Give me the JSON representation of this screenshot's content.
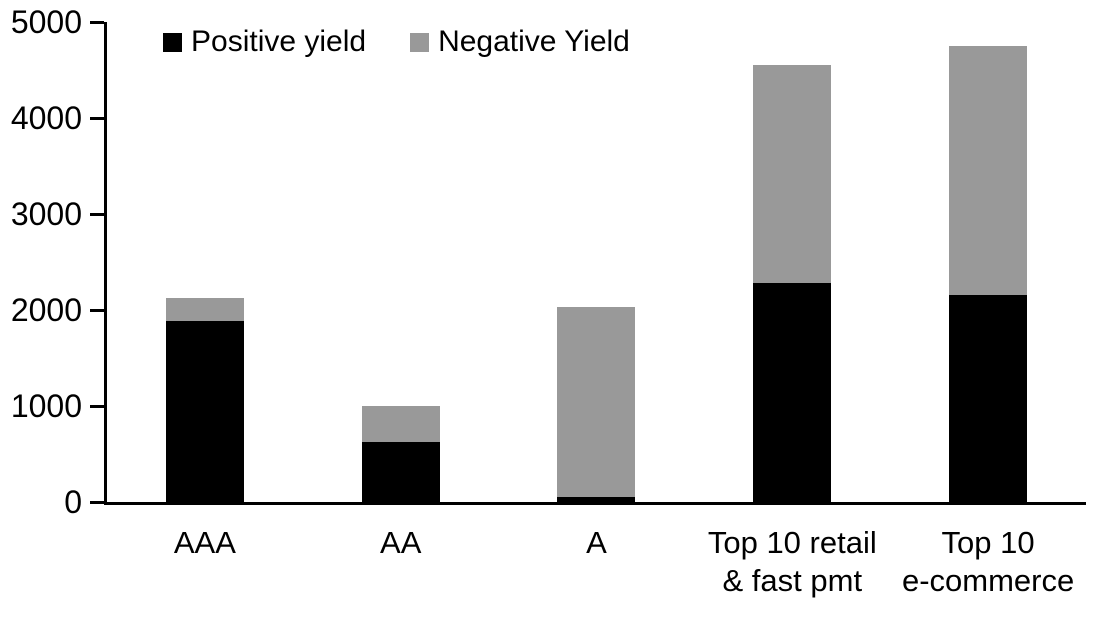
{
  "chart_data": {
    "type": "bar",
    "stacked": true,
    "title": "",
    "xlabel": "",
    "ylabel": "",
    "categories": [
      "AAA",
      "AA",
      "A",
      "Top 10 retail\n& fast pmt",
      "Top 10\ne-commerce"
    ],
    "series": [
      {
        "name": "Positive yield",
        "color": "#000000",
        "values": [
          1890,
          620,
          50,
          2280,
          2160
        ]
      },
      {
        "name": "Negative Yield",
        "color": "#999999",
        "values": [
          240,
          380,
          1980,
          2270,
          2590
        ]
      }
    ],
    "stacked_totals": [
      2130,
      1000,
      2030,
      4550,
      4750
    ],
    "ylim": [
      0,
      5000
    ],
    "yticks": [
      "0",
      "1000",
      "2000",
      "3000",
      "4000",
      "5000"
    ],
    "legend_position": "top-left",
    "grid": false,
    "axis_color": "#000000",
    "background_color": "#ffffff"
  }
}
